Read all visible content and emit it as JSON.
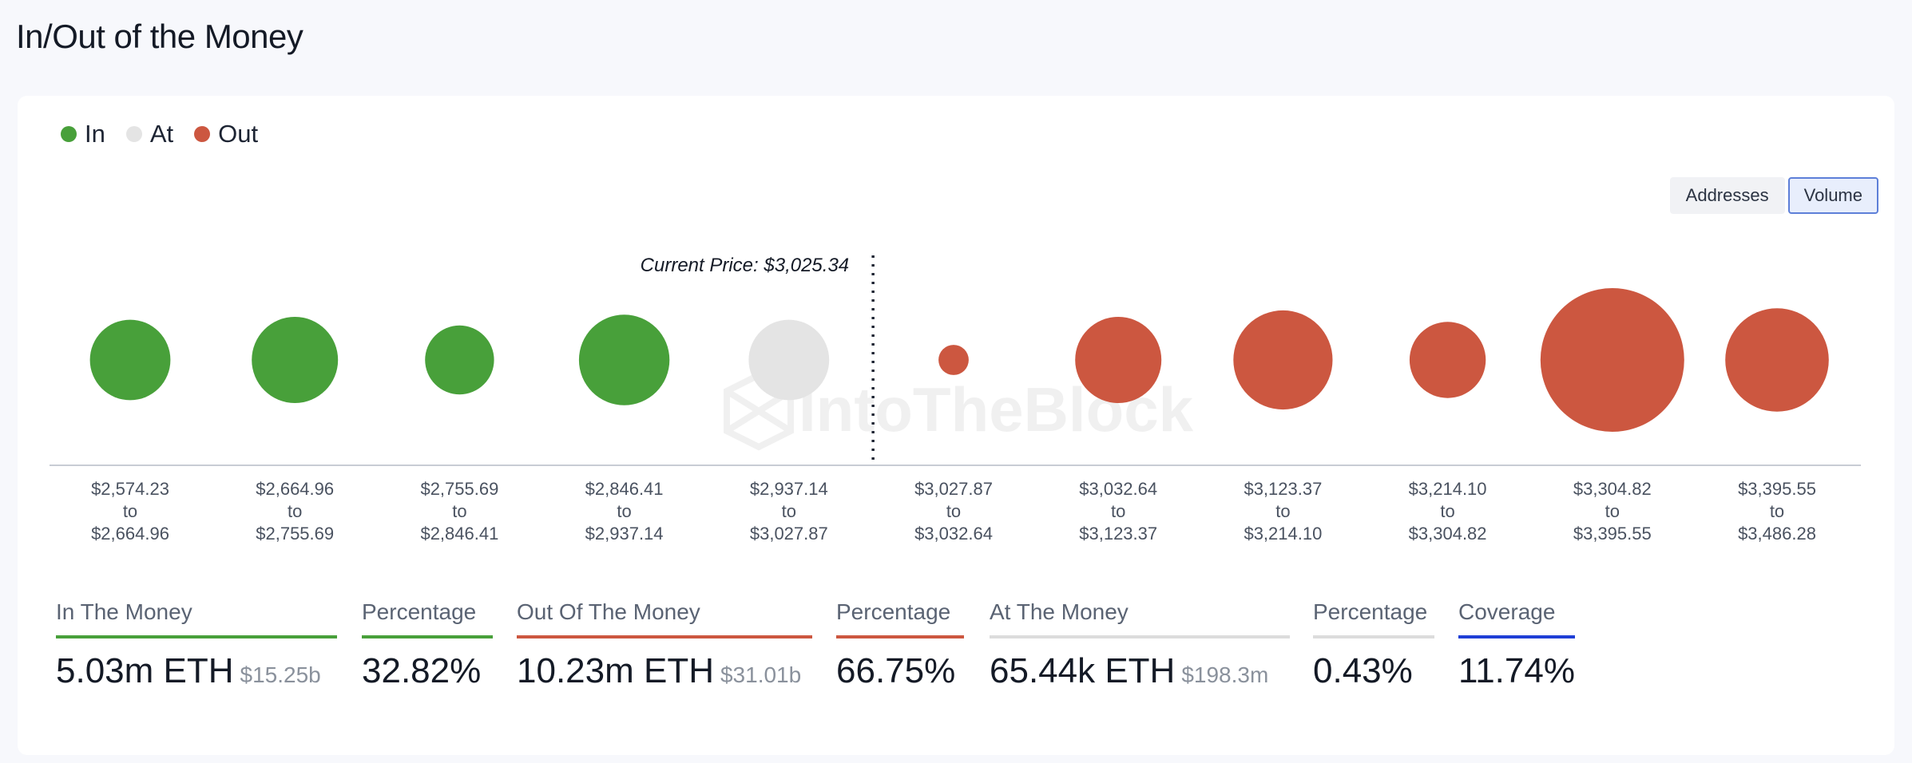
{
  "page": {
    "title": "In/Out of the Money"
  },
  "colors": {
    "in": "#48a03a",
    "at": "#e4e4e4",
    "out": "#cc5740",
    "coverage": "#1f3fd6"
  },
  "legend": [
    {
      "label": "In",
      "color": "#48a03a"
    },
    {
      "label": "At",
      "color": "#e4e4e4"
    },
    {
      "label": "Out",
      "color": "#cc5740"
    }
  ],
  "toggle": {
    "options": [
      "Addresses",
      "Volume"
    ],
    "selected": "Volume"
  },
  "chart_data": {
    "type": "scatter",
    "marker": "bubble",
    "current_price_label": "Current Price: $3,025.34",
    "current_price": 3025.34,
    "watermark": "IntoTheBlock",
    "categories": [
      {
        "from": "$2,574.23",
        "to_word": "to",
        "to": "$2,664.96",
        "status": "in",
        "size": 0.56
      },
      {
        "from": "$2,664.96",
        "to_word": "to",
        "to": "$2,755.69",
        "status": "in",
        "size": 0.6
      },
      {
        "from": "$2,755.69",
        "to_word": "to",
        "to": "$2,846.41",
        "status": "in",
        "size": 0.48
      },
      {
        "from": "$2,846.41",
        "to_word": "to",
        "to": "$2,937.14",
        "status": "in",
        "size": 0.63
      },
      {
        "from": "$2,937.14",
        "to_word": "to",
        "to": "$3,027.87",
        "status": "at",
        "size": 0.56
      },
      {
        "from": "$3,027.87",
        "to_word": "to",
        "to": "$3,032.64",
        "status": "out",
        "size": 0.21
      },
      {
        "from": "$3,032.64",
        "to_word": "to",
        "to": "$3,123.37",
        "status": "out",
        "size": 0.6
      },
      {
        "from": "$3,123.37",
        "to_word": "to",
        "to": "$3,214.10",
        "status": "out",
        "size": 0.69
      },
      {
        "from": "$3,214.10",
        "to_word": "to",
        "to": "$3,304.82",
        "status": "out",
        "size": 0.53
      },
      {
        "from": "$3,304.82",
        "to_word": "to",
        "to": "$3,395.55",
        "status": "out",
        "size": 1.0
      },
      {
        "from": "$3,395.55",
        "to_word": "to",
        "to": "$3,486.28",
        "status": "out",
        "size": 0.72
      }
    ]
  },
  "stats": [
    {
      "label": "In The Money",
      "value": "5.03m ETH",
      "sub": "$15.25b",
      "color": "#48a03a"
    },
    {
      "label": "Percentage",
      "value": "32.82%",
      "sub": "",
      "color": "#48a03a"
    },
    {
      "label": "Out Of The Money",
      "value": "10.23m ETH",
      "sub": "$31.01b",
      "color": "#cc5740"
    },
    {
      "label": "Percentage",
      "value": "66.75%",
      "sub": "",
      "color": "#cc5740"
    },
    {
      "label": "At The Money",
      "value": "65.44k ETH",
      "sub": "$198.3m",
      "color": "#dcdcdc"
    },
    {
      "label": "Percentage",
      "value": "0.43%",
      "sub": "",
      "color": "#dcdcdc"
    },
    {
      "label": "Coverage",
      "value": "11.74%",
      "sub": "",
      "color": "#1f3fd6"
    }
  ]
}
